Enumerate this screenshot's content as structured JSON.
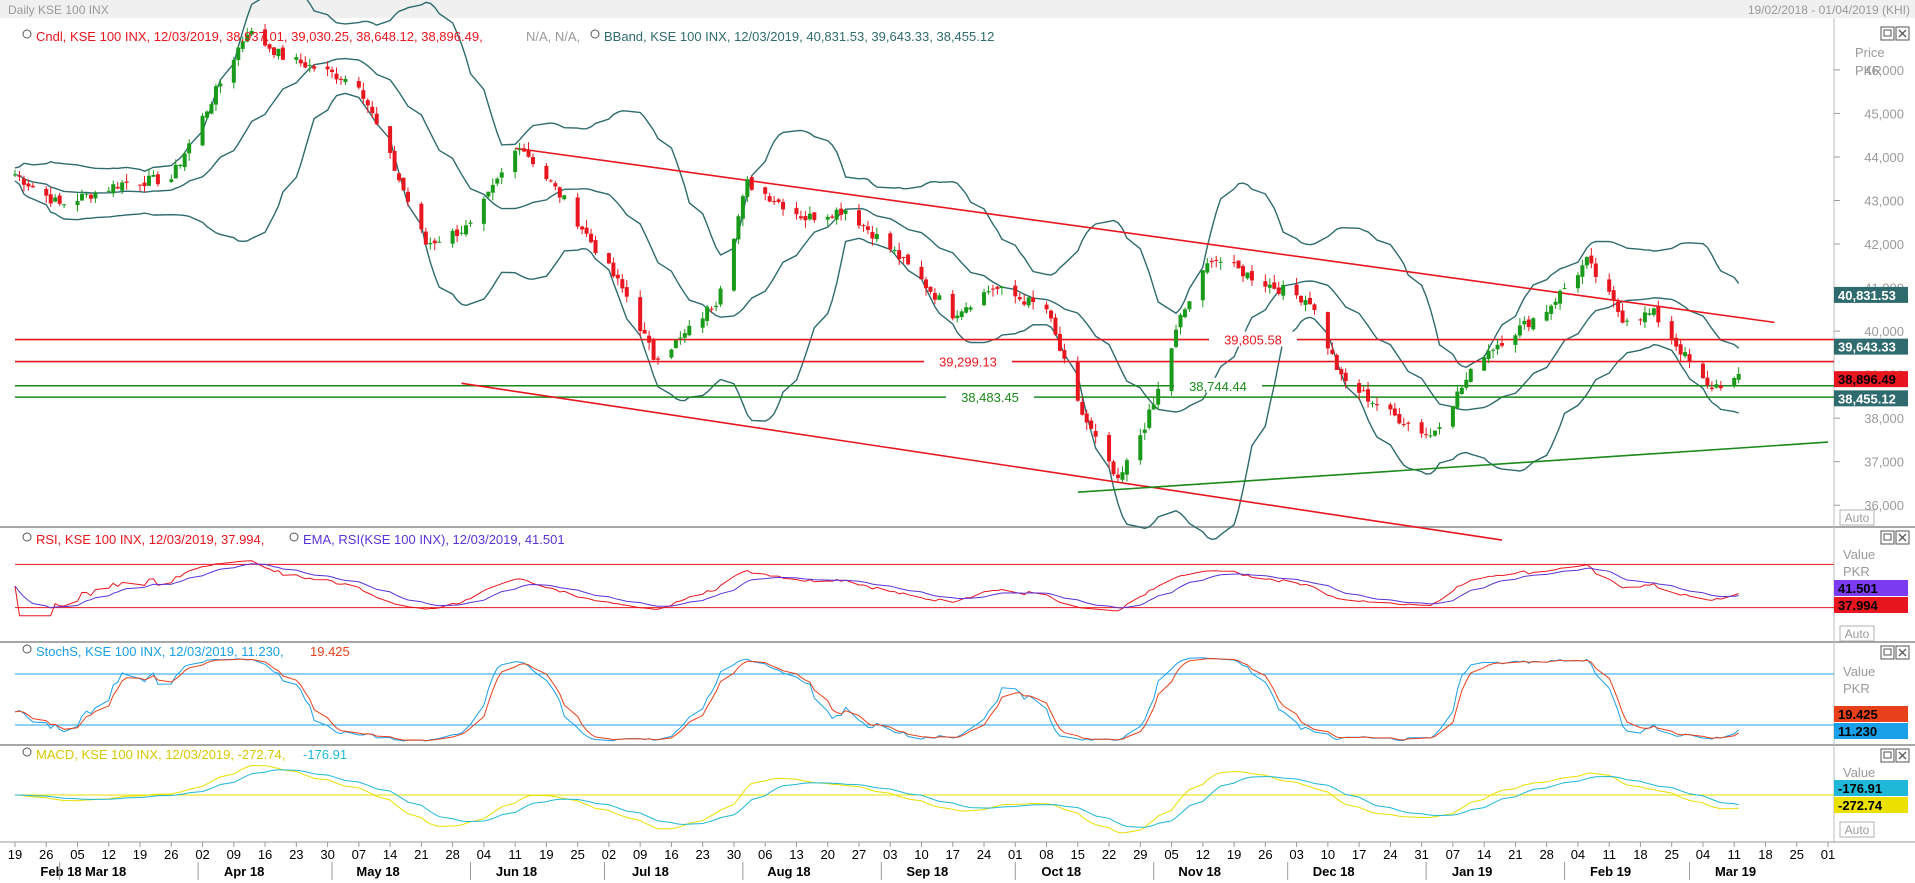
{
  "window": {
    "title": "Daily KSE 100 INX",
    "date_range": "19/02/2018 - 01/04/2019 (KHI)"
  },
  "panes": {
    "price": {
      "legend_candles": "Cndl, KSE 100 INX, 12/03/2019, 38,937.01, 39,030.25, 38,648.12, 38,896.49,",
      "legend_candles_na": "N/A, N/A,",
      "legend_bband": "BBand, KSE 100 INX, 12/03/2019, 40,831.53, 39,643.33, 38,455.12",
      "axis_title_1": "Price",
      "axis_title_2": "PKR",
      "auto_label": "Auto"
    },
    "rsi": {
      "legend_rsi": "RSI, KSE 100 INX, 12/03/2019, 37.994,",
      "legend_ema": "EMA, RSI(KSE 100 INX), 12/03/2019, 41.501",
      "axis_title_1": "Value",
      "axis_title_2": "PKR",
      "auto_label": "Auto",
      "tag_ema": "41.501",
      "tag_rsi": "37.994"
    },
    "stoch": {
      "legend": "StochS, KSE 100 INX, 12/03/2019, 11.230,",
      "legend_d": "19.425",
      "axis_title_1": "Value",
      "axis_title_2": "PKR",
      "tag_d": "19.425",
      "tag_k": "11.230"
    },
    "macd": {
      "legend": "MACD, KSE 100 INX, 12/03/2019, -272.74,",
      "legend_signal": "-176.91",
      "axis_title_1": "Value",
      "auto_label": "Auto",
      "tag_signal": "-176.91",
      "tag_macd": "-272.74"
    }
  },
  "colors": {
    "up": "#1a9a1a",
    "down": "#e8161e",
    "bband": "#2f6b6e",
    "rsi": "#e8161e",
    "ema": "#5a32d8",
    "stoch_k": "#1aa0e8",
    "stoch_d": "#e8401a",
    "macd": "#e8e000",
    "signal": "#20b8d8"
  },
  "chart_data": {
    "type": "line",
    "x_start": "2018-02-19",
    "x_end": "2019-04-01",
    "ylim": [
      35500,
      47100
    ],
    "y_ticks": [
      "46,000",
      "45,000",
      "44,000",
      "43,000",
      "42,000",
      "41,000",
      "40,000",
      "39,000",
      "38,000",
      "37,000",
      "36,000"
    ],
    "x_ticks_days": [
      "19",
      "26",
      "05",
      "12",
      "19",
      "26",
      "02",
      "09",
      "16",
      "23",
      "30",
      "07",
      "14",
      "21",
      "28",
      "04",
      "11",
      "19",
      "25",
      "02",
      "09",
      "16",
      "23",
      "30",
      "06",
      "13",
      "20",
      "27",
      "03",
      "10",
      "17",
      "24",
      "01",
      "08",
      "15",
      "22",
      "29",
      "05",
      "12",
      "19",
      "26",
      "03",
      "10",
      "17",
      "24",
      "31",
      "07",
      "14",
      "21",
      "28",
      "04",
      "11",
      "18",
      "25",
      "04",
      "11",
      "18",
      "25",
      "01"
    ],
    "x_ticks_months": [
      "Feb 18",
      "Mar 18",
      "Apr 18",
      "May 18",
      "Jun 18",
      "Jul 18",
      "Aug 18",
      "Sep 18",
      "Oct 18",
      "Nov 18",
      "Dec 18",
      "Jan 19",
      "Feb 19",
      "Mar 19"
    ],
    "price_path": [
      [
        "2018-02-19",
        43600
      ],
      [
        "2018-03-01",
        42900
      ],
      [
        "2018-03-15",
        43400
      ],
      [
        "2018-03-26",
        43500
      ],
      [
        "2018-04-12",
        46900
      ],
      [
        "2018-04-20",
        46300
      ],
      [
        "2018-05-07",
        45700
      ],
      [
        "2018-05-22",
        42000
      ],
      [
        "2018-06-01",
        42400
      ],
      [
        "2018-06-12",
        44300
      ],
      [
        "2018-06-22",
        43000
      ],
      [
        "2018-07-06",
        40800
      ],
      [
        "2018-07-12",
        39400
      ],
      [
        "2018-07-18",
        39800
      ],
      [
        "2018-07-26",
        40700
      ],
      [
        "2018-08-02",
        43400
      ],
      [
        "2018-08-15",
        42600
      ],
      [
        "2018-08-24",
        42800
      ],
      [
        "2018-09-04",
        41800
      ],
      [
        "2018-09-17",
        40400
      ],
      [
        "2018-09-26",
        41000
      ],
      [
        "2018-10-08",
        40500
      ],
      [
        "2018-10-15",
        38300
      ],
      [
        "2018-10-24",
        36500
      ],
      [
        "2018-11-01",
        38300
      ],
      [
        "2018-11-07",
        40300
      ],
      [
        "2018-11-14",
        41700
      ],
      [
        "2018-11-26",
        41100
      ],
      [
        "2018-12-06",
        40700
      ],
      [
        "2018-12-13",
        38900
      ],
      [
        "2018-12-24",
        38100
      ],
      [
        "2019-01-02",
        37600
      ],
      [
        "2019-01-14",
        39500
      ],
      [
        "2019-01-28",
        40500
      ],
      [
        "2019-02-06",
        41600
      ],
      [
        "2019-02-14",
        40300
      ],
      [
        "2019-02-21",
        40400
      ],
      [
        "2019-03-05",
        38700
      ],
      [
        "2019-03-12",
        38896
      ]
    ],
    "horizontal_levels": [
      {
        "value": 39805.58,
        "label": "39,805.58",
        "color": "#e8161e"
      },
      {
        "value": 39299.13,
        "label": "39,299.13",
        "color": "#e8161e"
      },
      {
        "value": 38744.44,
        "label": "38,744.44",
        "color": "#1a8a1a"
      },
      {
        "value": 38483.45,
        "label": "38,483.45",
        "color": "#1a8a1a"
      }
    ],
    "price_tags": [
      {
        "value": 40831.53,
        "label": "40,831.53",
        "bg": "#2f6b6e"
      },
      {
        "value": 39643.33,
        "label": "39,643.33",
        "bg": "#2f6b6e"
      },
      {
        "value": 38896.49,
        "label": "38,896.49",
        "bg": "#e8161e"
      },
      {
        "value": 38455.12,
        "label": "38,455.12",
        "bg": "#2f6b6e"
      }
    ],
    "trendlines": [
      {
        "from": [
          "2018-06-11",
          44200
        ],
        "to": [
          "2019-03-20",
          40200
        ],
        "color": "#e8161e"
      },
      {
        "from": [
          "2018-05-30",
          38800
        ],
        "to": [
          "2019-01-18",
          35200
        ],
        "color": "#e8161e"
      },
      {
        "from": [
          "2018-10-15",
          36300
        ],
        "to": [
          "2019-04-01",
          37450
        ],
        "color": "#1a8a1a"
      }
    ]
  }
}
